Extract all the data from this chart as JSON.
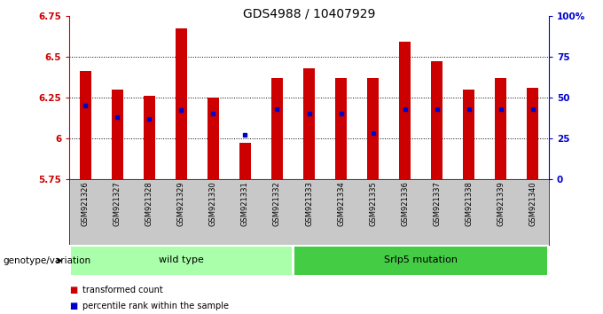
{
  "title": "GDS4988 / 10407929",
  "samples": [
    "GSM921326",
    "GSM921327",
    "GSM921328",
    "GSM921329",
    "GSM921330",
    "GSM921331",
    "GSM921332",
    "GSM921333",
    "GSM921334",
    "GSM921335",
    "GSM921336",
    "GSM921337",
    "GSM921338",
    "GSM921339",
    "GSM921340"
  ],
  "transformed_count": [
    6.41,
    6.3,
    6.26,
    6.67,
    6.25,
    5.97,
    6.37,
    6.43,
    6.37,
    6.37,
    6.59,
    6.47,
    6.3,
    6.37,
    6.31
  ],
  "percentile_rank": [
    45,
    38,
    37,
    42,
    40,
    27,
    43,
    40,
    40,
    28,
    43,
    43,
    43,
    43,
    43
  ],
  "ymin": 5.75,
  "ymax": 6.75,
  "yticks": [
    5.75,
    6.0,
    6.25,
    6.5,
    6.75
  ],
  "ytick_labels": [
    "5.75",
    "6",
    "6.25",
    "6.5",
    "6.75"
  ],
  "right_yticks": [
    0,
    25,
    50,
    75,
    100
  ],
  "right_ytick_labels": [
    "0",
    "25",
    "50",
    "75",
    "100%"
  ],
  "groups": [
    {
      "label": "wild type",
      "start": 0,
      "end": 6,
      "color": "#aaffaa"
    },
    {
      "label": "Srlp5 mutation",
      "start": 7,
      "end": 14,
      "color": "#44cc44"
    }
  ],
  "bar_color": "#cc0000",
  "dot_color": "#0000cc",
  "bar_width": 0.35,
  "background_color": "#ffffff",
  "plot_bg_color": "#ffffff",
  "legend_items": [
    {
      "label": "transformed count",
      "color": "#cc0000",
      "marker": "s"
    },
    {
      "label": "percentile rank within the sample",
      "color": "#0000cc",
      "marker": "s"
    }
  ],
  "genotype_label": "genotype/variation",
  "title_fontsize": 10,
  "tick_fontsize": 7.5,
  "sample_fontsize": 6,
  "legend_fontsize": 7,
  "group_fontsize": 8
}
